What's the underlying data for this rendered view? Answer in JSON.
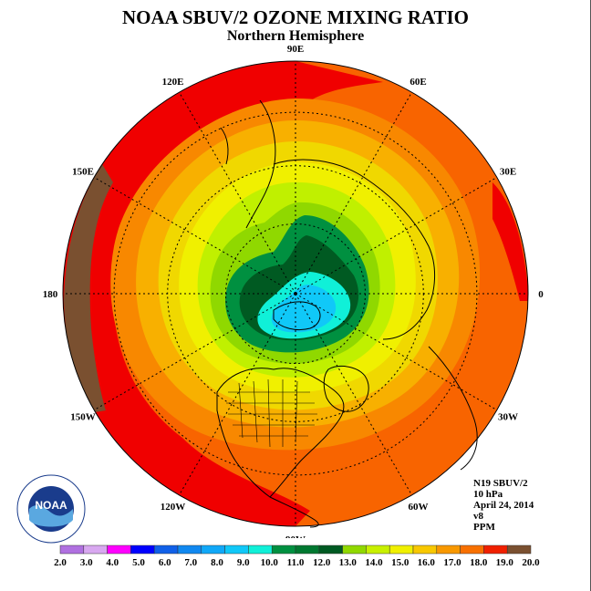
{
  "title": "NOAA SBUV/2 OZONE MIXING RATIO",
  "subtitle": "Northern Hemisphere",
  "longitude_labels": [
    {
      "text": "90E",
      "lon": 90
    },
    {
      "text": "60E",
      "lon": 60
    },
    {
      "text": "30E",
      "lon": 30
    },
    {
      "text": "0",
      "lon": 0
    },
    {
      "text": "30W",
      "lon": -30
    },
    {
      "text": "60W",
      "lon": -60
    },
    {
      "text": "90W",
      "lon": -90
    },
    {
      "text": "120W",
      "lon": -120
    },
    {
      "text": "150W",
      "lon": -150
    },
    {
      "text": "180",
      "lon": 180
    },
    {
      "text": "150E",
      "lon": 150
    },
    {
      "text": "120E",
      "lon": 120
    }
  ],
  "info": {
    "instrument": "N19 SBUV/2",
    "pressure": "10 hPa",
    "date": "April 24, 2014",
    "version": "v8",
    "units": "PPM"
  },
  "logo": {
    "text": "NOAA"
  },
  "colorbar": {
    "ticks": [
      "2.0",
      "3.0",
      "4.0",
      "5.0",
      "6.0",
      "7.0",
      "8.0",
      "9.0",
      "10.0",
      "11.0",
      "12.0",
      "13.0",
      "14.0",
      "15.0",
      "16.0",
      "17.0",
      "18.0",
      "19.0",
      "20.0"
    ],
    "colors": [
      "#b070e0",
      "#d8a8f0",
      "#ff00ff",
      "#0000ff",
      "#1060e8",
      "#1088f0",
      "#10a8f8",
      "#10c8f8",
      "#10f0d8",
      "#009040",
      "#007830",
      "#005a22",
      "#90d800",
      "#c8f000",
      "#f0f000",
      "#f8c800",
      "#f89800",
      "#f87000",
      "#f02000",
      "#7a5030"
    ]
  },
  "map_colors": {
    "level_20": "#7a5030",
    "level_19": "#f00000",
    "level_18": "#f86400",
    "level_17": "#f88800",
    "level_16": "#f8b000",
    "level_15": "#f0d800",
    "level_14": "#f0f000",
    "level_13": "#c0f000",
    "level_12": "#90d800",
    "level_11": "#009040",
    "level_10": "#005a22",
    "level_9": "#10f0d8",
    "level_8": "#10c8f8"
  }
}
